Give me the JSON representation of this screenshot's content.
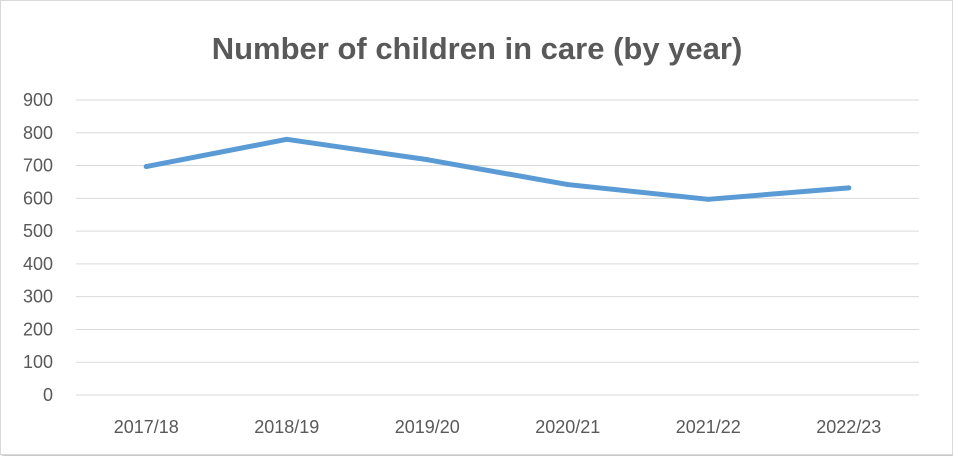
{
  "chart_data": {
    "type": "line",
    "title": "Number of children in care (by year)",
    "categories": [
      "2017/18",
      "2018/19",
      "2019/20",
      "2020/21",
      "2021/22",
      "2022/23"
    ],
    "series": [
      {
        "values": [
          697,
          780,
          718,
          642,
          597,
          632
        ]
      }
    ],
    "xlabel": "",
    "ylabel": "",
    "ylim": [
      0,
      900
    ],
    "yticks": [
      "0",
      "100",
      "200",
      "300",
      "400",
      "500",
      "600",
      "700",
      "800",
      "900"
    ],
    "grid": true,
    "legend": "none",
    "colors": {
      "series": "#5b9bd5",
      "grid": "#d9d9d9",
      "text": "#595959"
    }
  }
}
